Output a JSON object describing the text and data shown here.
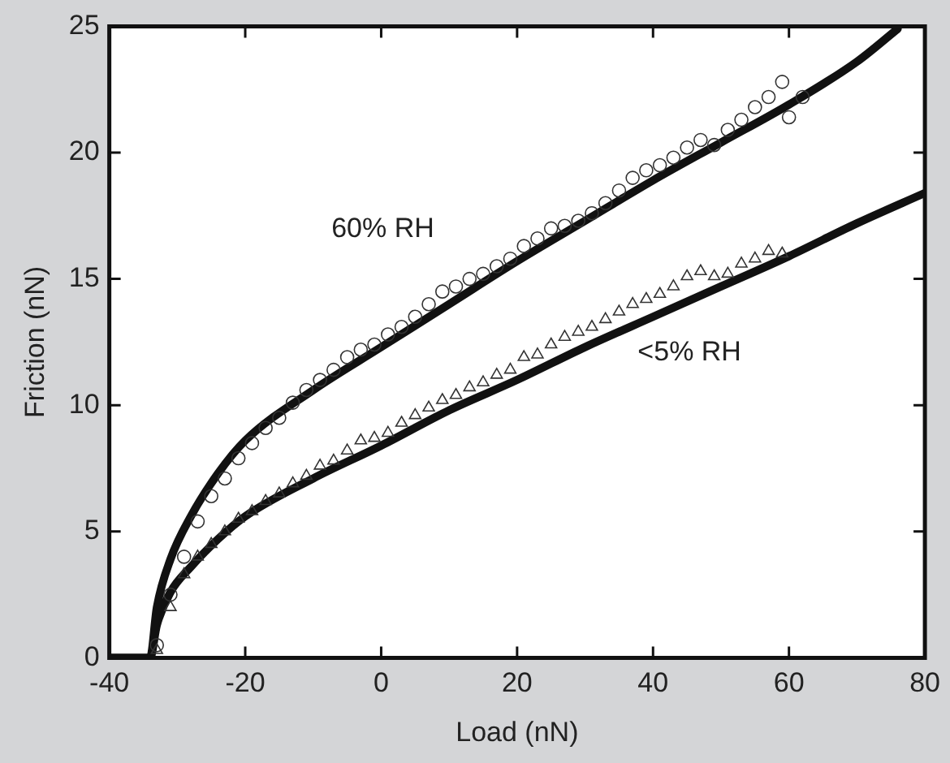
{
  "chart_data": {
    "type": "scatter",
    "xlabel": "Load (nN)",
    "ylabel": "Friction (nN)",
    "xlim": [
      -40,
      80
    ],
    "xticks": [
      -40,
      -20,
      0,
      20,
      40,
      60,
      80
    ],
    "ylim": [
      0,
      25
    ],
    "yticks": [
      0,
      5,
      10,
      15,
      20,
      25
    ],
    "grid": false,
    "legend": false,
    "series": [
      {
        "name": "60% RH",
        "marker": "circle",
        "color": "#333333",
        "x": [
          -33,
          -31,
          -29,
          -27,
          -25,
          -23,
          -21,
          -19,
          -17,
          -15,
          -13,
          -11,
          -9,
          -7,
          -5,
          -3,
          -1,
          1,
          3,
          5,
          7,
          9,
          11,
          13,
          15,
          17,
          19,
          21,
          23,
          25,
          27,
          29,
          31,
          33,
          35,
          37,
          39,
          41,
          43,
          45,
          47,
          49,
          51,
          53,
          55,
          57,
          59,
          60,
          62
        ],
        "values": [
          0.5,
          2.5,
          4,
          5.4,
          6.4,
          7.1,
          7.9,
          8.5,
          9.1,
          9.5,
          10.1,
          10.6,
          11,
          11.4,
          11.9,
          12.2,
          12.4,
          12.8,
          13.1,
          13.5,
          14,
          14.5,
          14.7,
          15,
          15.2,
          15.5,
          15.8,
          16.3,
          16.6,
          17,
          17.1,
          17.3,
          17.6,
          18,
          18.5,
          19,
          19.3,
          19.5,
          19.8,
          20.2,
          20.5,
          20.3,
          20.9,
          21.3,
          21.8,
          22.2,
          22.8,
          21.4,
          22.2
        ]
      },
      {
        "name": "<5% RH",
        "marker": "triangle",
        "color": "#333333",
        "x": [
          -33,
          -31,
          -29,
          -27,
          -25,
          -23,
          -21,
          -19,
          -17,
          -15,
          -13,
          -11,
          -9,
          -7,
          -5,
          -3,
          -1,
          1,
          3,
          5,
          7,
          9,
          11,
          13,
          15,
          17,
          19,
          21,
          23,
          25,
          27,
          29,
          31,
          33,
          35,
          37,
          39,
          41,
          43,
          45,
          47,
          49,
          51,
          53,
          55,
          57,
          59
        ],
        "values": [
          0.3,
          2,
          3.3,
          4,
          4.5,
          5,
          5.5,
          5.8,
          6.2,
          6.5,
          6.9,
          7.2,
          7.6,
          7.8,
          8.2,
          8.6,
          8.7,
          8.9,
          9.3,
          9.6,
          9.9,
          10.2,
          10.4,
          10.7,
          10.9,
          11.2,
          11.4,
          11.9,
          12,
          12.4,
          12.7,
          12.9,
          13.1,
          13.4,
          13.7,
          14,
          14.2,
          14.4,
          14.7,
          15.1,
          15.3,
          15.1,
          15.2,
          15.6,
          15.8,
          16.1,
          16
        ]
      },
      {
        "type": "line",
        "marker": "none",
        "color": "#111111",
        "x": [
          -40,
          -34,
          -33,
          -31,
          -28,
          -24,
          -20,
          -10,
          0,
          10,
          20,
          30,
          40,
          50,
          60,
          70,
          76
        ],
        "values": [
          0,
          0,
          2,
          3.9,
          5.6,
          7.3,
          8.6,
          10.6,
          12.3,
          14,
          15.7,
          17.3,
          18.9,
          20.4,
          21.9,
          23.6,
          24.9
        ]
      },
      {
        "type": "line",
        "marker": "none",
        "color": "#111111",
        "x": [
          -40,
          -34,
          -33,
          -31,
          -28,
          -24,
          -20,
          -10,
          0,
          10,
          20,
          30,
          40,
          50,
          60,
          70,
          80
        ],
        "values": [
          0,
          0,
          1.3,
          2.6,
          3.6,
          4.7,
          5.6,
          7.1,
          8.4,
          9.8,
          11,
          12.3,
          13.5,
          14.7,
          15.9,
          17.2,
          18.4
        ]
      }
    ]
  }
}
